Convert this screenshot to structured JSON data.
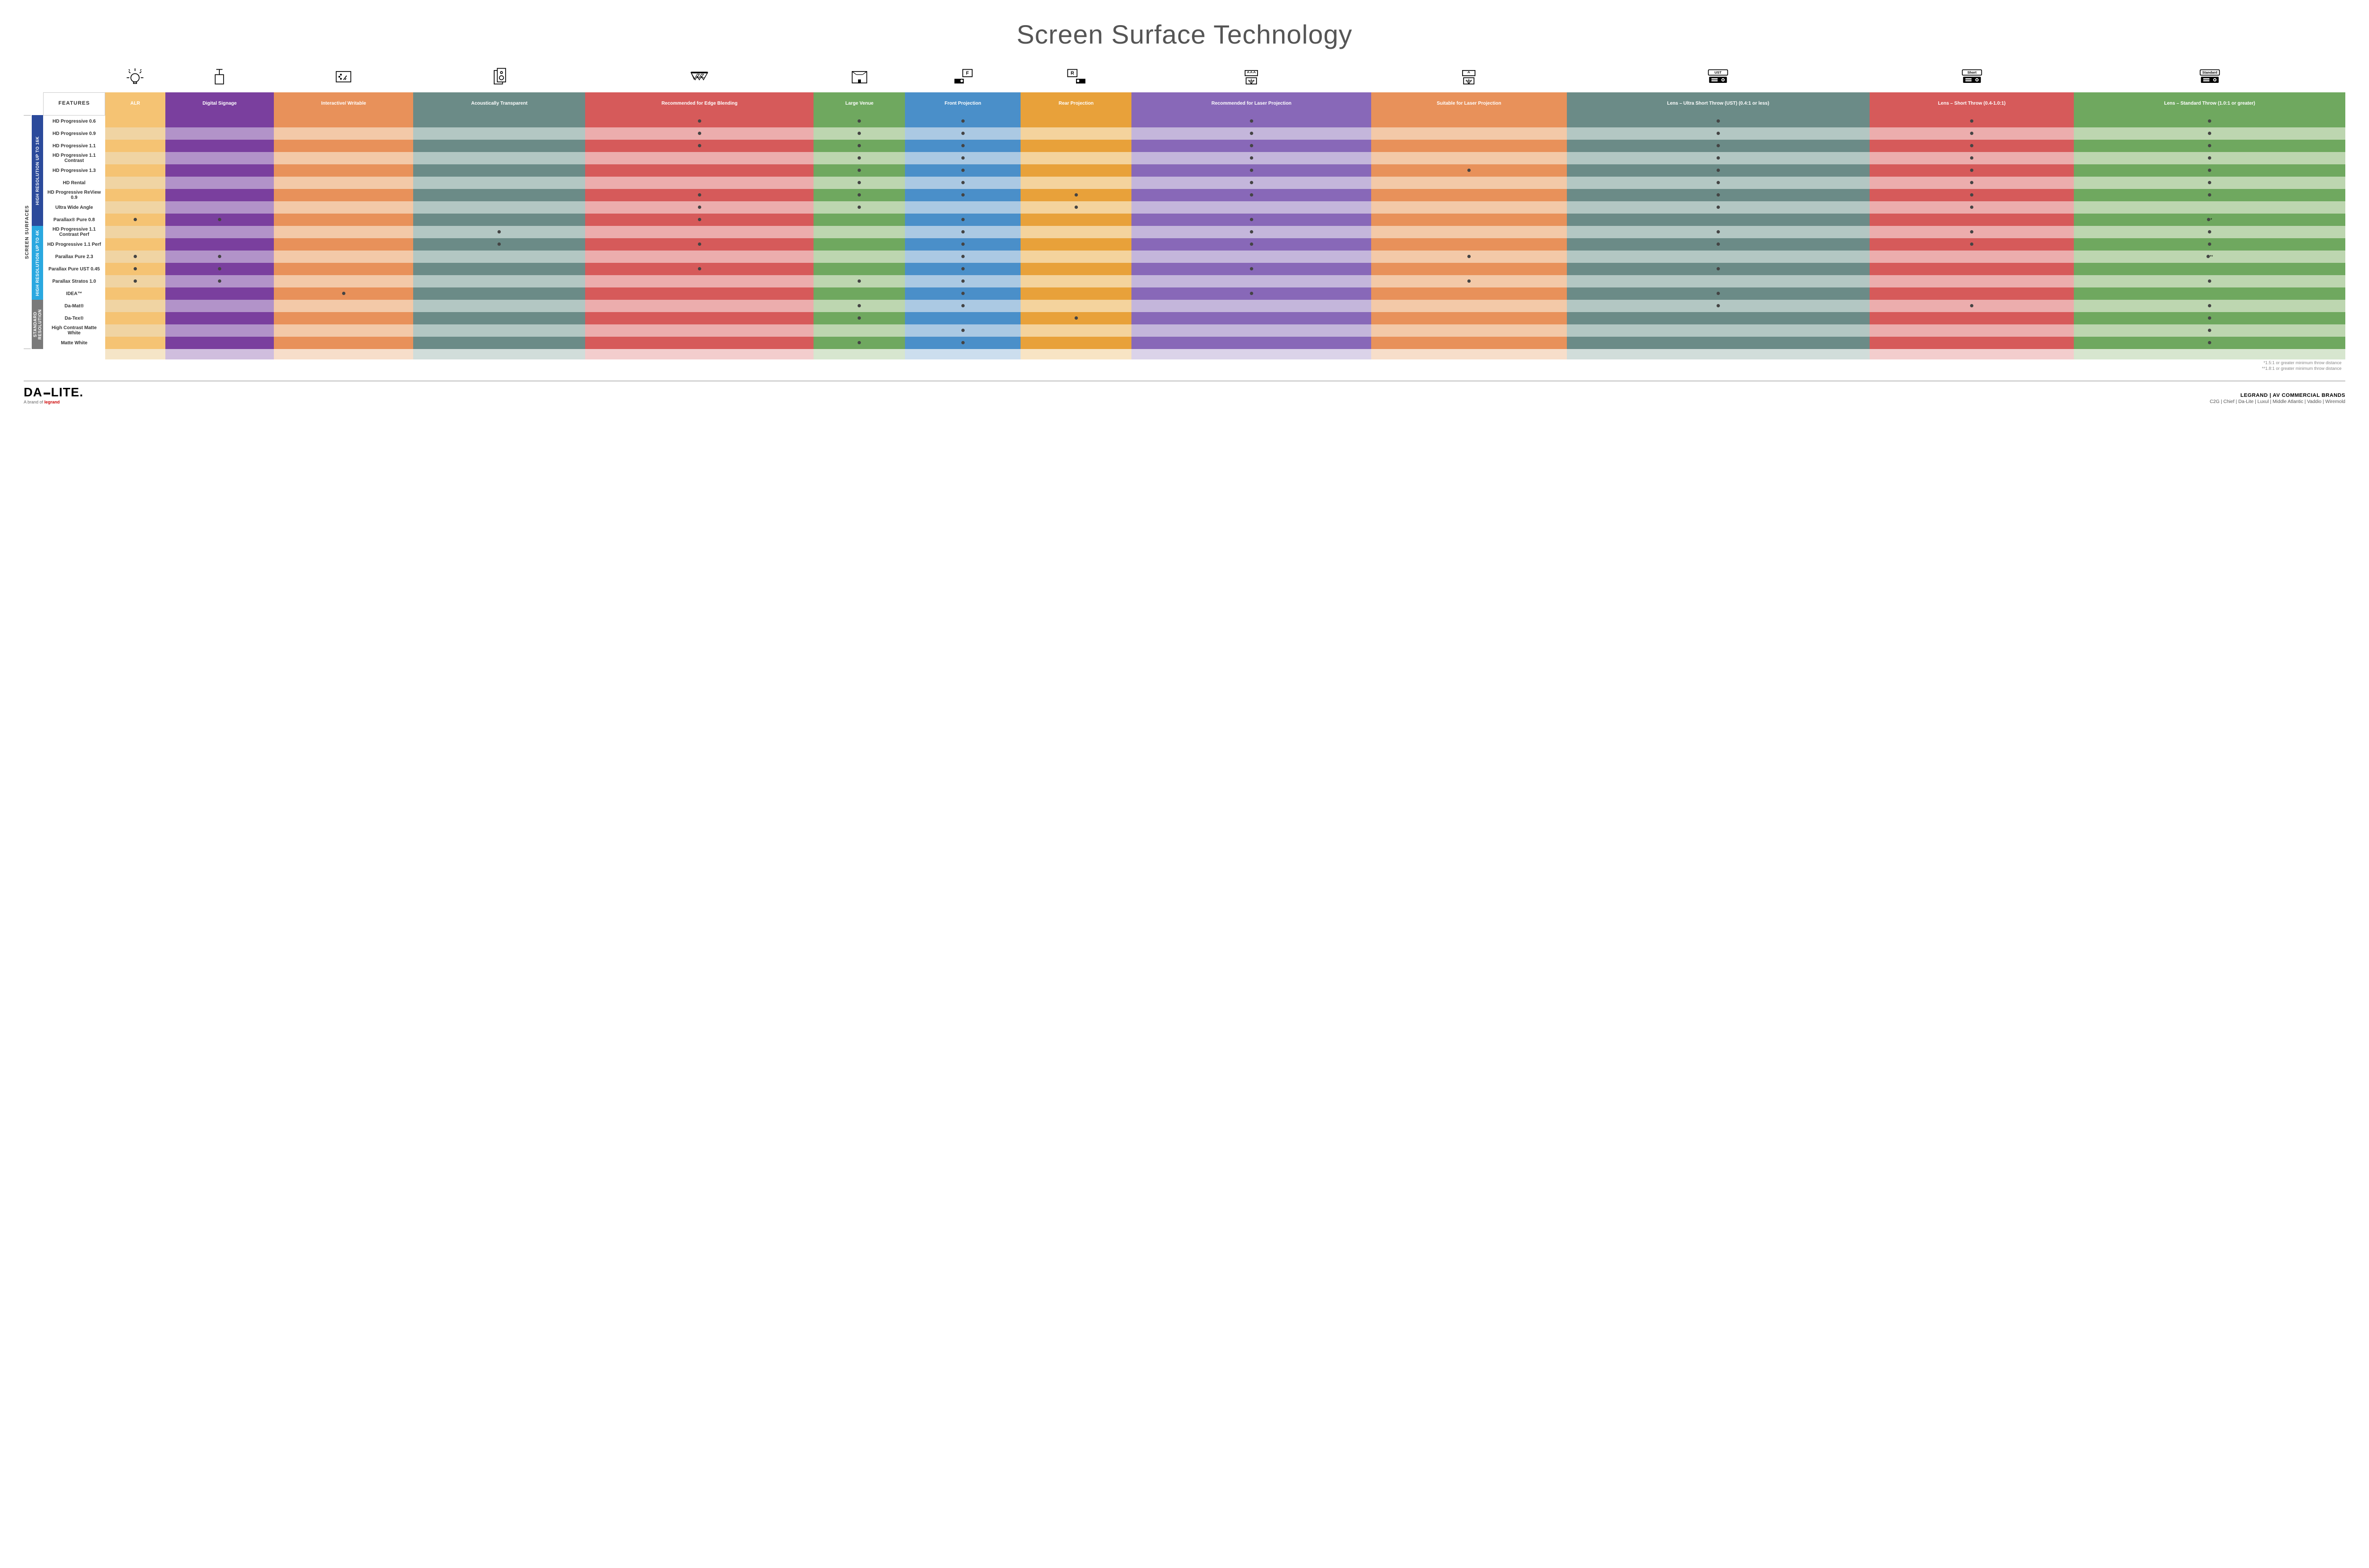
{
  "title": "Screen Surface Technology",
  "features_label": "FEATURES",
  "side_label": "SCREEN SURFACES",
  "groups": [
    {
      "label": "HIGH RESOLUTION UP TO 16K",
      "color": "#2b4a9b",
      "rows": 9
    },
    {
      "label": "HIGH RESOLUTION UP TO 4K",
      "color": "#2aa8e0",
      "rows": 6
    },
    {
      "label": "STANDARD RESOLUTION",
      "color": "#7a7a7a",
      "rows": 4
    }
  ],
  "columns": [
    {
      "label": "ALR",
      "colors": [
        "#f5c373",
        "#f0d4a3"
      ]
    },
    {
      "label": "Digital Signage",
      "colors": [
        "#7a3f9e",
        "#b293c9"
      ]
    },
    {
      "label": "Interactive/ Writable",
      "colors": [
        "#e8915a",
        "#f3c9a8"
      ]
    },
    {
      "label": "Acoustically Transparent",
      "colors": [
        "#6b8b87",
        "#b3c7c3"
      ]
    },
    {
      "label": "Recommended for Edge Blending",
      "colors": [
        "#d65a5a",
        "#ecadad"
      ]
    },
    {
      "label": "Large Venue",
      "colors": [
        "#6fa85f",
        "#bdd6b0"
      ]
    },
    {
      "label": "Front Projection",
      "colors": [
        "#4a8fc9",
        "#abc9e3"
      ]
    },
    {
      "label": "Rear Projection",
      "colors": [
        "#e8a13a",
        "#f4d39d"
      ]
    },
    {
      "label": "Recommended for Laser Projection",
      "colors": [
        "#8868b8",
        "#c4b6db"
      ]
    },
    {
      "label": "Suitable for Laser Projection",
      "colors": [
        "#e8915a",
        "#f3c9a8"
      ]
    },
    {
      "label": "Lens – Ultra Short Throw (UST) (0.4:1 or less)",
      "colors": [
        "#6b8b87",
        "#b3c7c3"
      ]
    },
    {
      "label": "Lens – Short Throw (0.4-1.0:1)",
      "colors": [
        "#d65a5a",
        "#ecadad"
      ]
    },
    {
      "label": "Lens – Standard Throw (1.0:1 or greater)",
      "colors": [
        "#6fa85f",
        "#bdd6b0"
      ]
    }
  ],
  "rows": [
    {
      "name": "HD Progressive 0.6",
      "dots": [
        0,
        0,
        0,
        0,
        1,
        1,
        1,
        0,
        1,
        0,
        1,
        1,
        1
      ]
    },
    {
      "name": "HD Progressive 0.9",
      "dots": [
        0,
        0,
        0,
        0,
        1,
        1,
        1,
        0,
        1,
        0,
        1,
        1,
        1
      ]
    },
    {
      "name": "HD Progressive 1.1",
      "dots": [
        0,
        0,
        0,
        0,
        1,
        1,
        1,
        0,
        1,
        0,
        1,
        1,
        1
      ]
    },
    {
      "name": "HD Progressive 1.1 Contrast",
      "dots": [
        0,
        0,
        0,
        0,
        0,
        1,
        1,
        0,
        1,
        0,
        1,
        1,
        1
      ]
    },
    {
      "name": "HD Progressive 1.3",
      "dots": [
        0,
        0,
        0,
        0,
        0,
        1,
        1,
        0,
        1,
        1,
        1,
        1,
        1
      ]
    },
    {
      "name": "HD Rental",
      "dots": [
        0,
        0,
        0,
        0,
        0,
        1,
        1,
        0,
        1,
        0,
        1,
        1,
        1
      ]
    },
    {
      "name": "HD Progressive ReView 0.9",
      "dots": [
        0,
        0,
        0,
        0,
        1,
        1,
        1,
        1,
        1,
        0,
        1,
        1,
        1
      ]
    },
    {
      "name": "Ultra Wide Angle",
      "dots": [
        0,
        0,
        0,
        0,
        1,
        1,
        0,
        1,
        0,
        0,
        1,
        1,
        0
      ]
    },
    {
      "name": "Parallax® Pure 0.8",
      "dots": [
        1,
        1,
        0,
        0,
        1,
        0,
        1,
        0,
        1,
        0,
        0,
        0,
        "•*"
      ]
    },
    {
      "name": "HD Progressive 1.1 Contrast Perf",
      "dots": [
        0,
        0,
        0,
        1,
        0,
        0,
        1,
        0,
        1,
        0,
        1,
        1,
        1
      ]
    },
    {
      "name": "HD Progressive 1.1 Perf",
      "dots": [
        0,
        0,
        0,
        1,
        1,
        0,
        1,
        0,
        1,
        0,
        1,
        1,
        1
      ]
    },
    {
      "name": "Parallax Pure 2.3",
      "dots": [
        1,
        1,
        0,
        0,
        0,
        0,
        1,
        0,
        0,
        1,
        0,
        0,
        "•**"
      ]
    },
    {
      "name": "Parallax Pure UST 0.45",
      "dots": [
        1,
        1,
        0,
        0,
        1,
        0,
        1,
        0,
        1,
        0,
        1,
        0,
        0
      ]
    },
    {
      "name": "Parallax Stratos 1.0",
      "dots": [
        1,
        1,
        0,
        0,
        0,
        1,
        1,
        0,
        0,
        1,
        0,
        0,
        1
      ]
    },
    {
      "name": "IDEA™",
      "dots": [
        0,
        0,
        1,
        0,
        0,
        0,
        1,
        0,
        1,
        0,
        1,
        0,
        0
      ]
    },
    {
      "name": "Da-Mat®",
      "dots": [
        0,
        0,
        0,
        0,
        0,
        1,
        1,
        0,
        0,
        0,
        1,
        1,
        1
      ]
    },
    {
      "name": "Da-Tex®",
      "dots": [
        0,
        0,
        0,
        0,
        0,
        1,
        0,
        1,
        0,
        0,
        0,
        0,
        1
      ]
    },
    {
      "name": "High Contrast Matte White",
      "dots": [
        0,
        0,
        0,
        0,
        0,
        0,
        1,
        0,
        0,
        0,
        0,
        0,
        1
      ]
    },
    {
      "name": "Matte White",
      "dots": [
        0,
        0,
        0,
        0,
        0,
        1,
        1,
        0,
        0,
        0,
        0,
        0,
        1
      ]
    }
  ],
  "notes": [
    "*1.5:1 or greater minimum throw distance",
    "**1.8:1 or greater minimum throw distance"
  ],
  "logo": {
    "a": "DA",
    "b": "LITE.",
    "sub": "A brand of ",
    "brand": "legrand"
  },
  "brands": {
    "title": "LEGRAND | AV COMMERCIAL BRANDS",
    "list": "C2G  |  Chief  |  Da-Lite  |  Luxul  |  Middle Atlantic  |  Vaddio  |  Wiremold"
  },
  "proj_labels": [
    "UST",
    "Short",
    "Standard"
  ]
}
